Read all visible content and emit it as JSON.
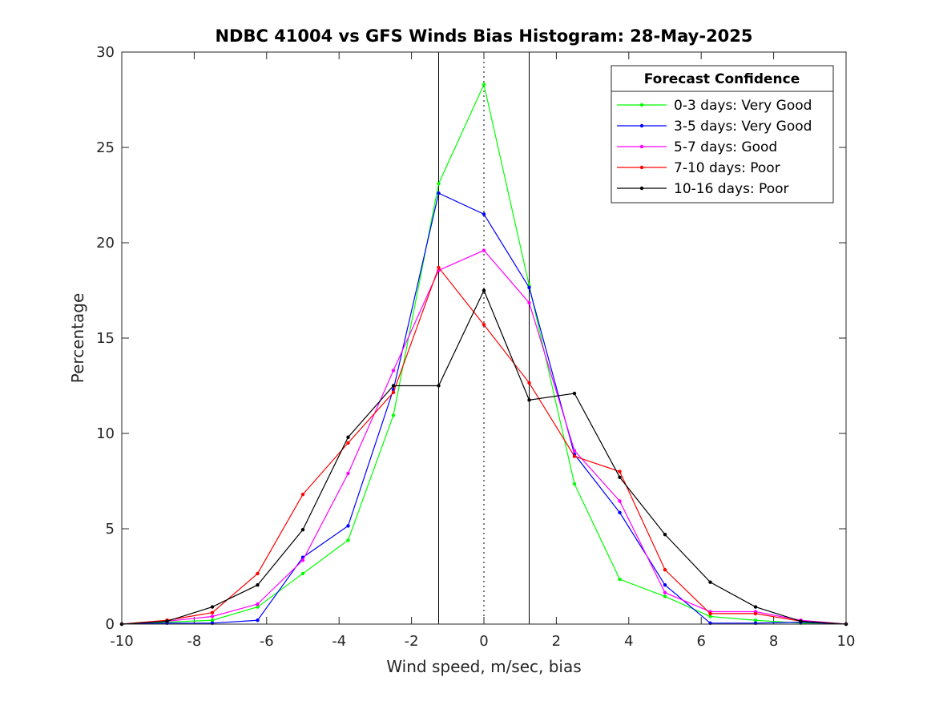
{
  "chart_data": {
    "type": "line",
    "title": "NDBC 41004 vs GFS Winds Bias Histogram: 28-May-2025",
    "xlabel": "Wind speed, m/sec, bias",
    "ylabel": "Percentage",
    "xlim": [
      -10,
      10
    ],
    "ylim": [
      0,
      30
    ],
    "xticks": [
      -10,
      -8,
      -6,
      -4,
      -2,
      0,
      2,
      4,
      6,
      8,
      10
    ],
    "yticks": [
      0,
      5,
      10,
      15,
      20,
      25,
      30
    ],
    "grid": false,
    "legend": {
      "title": "Forecast Confidence",
      "position": "top-right"
    },
    "reference_lines": {
      "solid_x": [
        -1.25,
        1.25
      ],
      "dotted_x": [
        0
      ]
    },
    "x": [
      -10,
      -8.75,
      -7.5,
      -6.25,
      -5,
      -3.75,
      -2.5,
      -1.25,
      0,
      1.25,
      2.5,
      3.75,
      5,
      6.25,
      7.5,
      8.75,
      10
    ],
    "series": [
      {
        "name": "0-3 days: Very Good",
        "color": "#00ff00",
        "values": [
          0,
          0.1,
          0.2,
          0.9,
          2.65,
          4.4,
          10.95,
          23.1,
          28.3,
          17.75,
          7.35,
          2.35,
          1.45,
          0.4,
          0.2,
          0.05,
          0
        ]
      },
      {
        "name": "3-5 days: Very Good",
        "color": "#0000ff",
        "values": [
          0,
          0.05,
          0.05,
          0.2,
          3.5,
          5.15,
          12.3,
          22.6,
          21.5,
          17.65,
          8.9,
          5.85,
          2.05,
          0.05,
          0.05,
          0.1,
          0
        ]
      },
      {
        "name": "5-7 days: Good",
        "color": "#ff00ff",
        "values": [
          0,
          0.15,
          0.4,
          1.05,
          3.35,
          7.9,
          13.3,
          18.55,
          19.6,
          16.85,
          9.1,
          6.45,
          1.65,
          0.65,
          0.65,
          0.2,
          0
        ]
      },
      {
        "name": "7-10 days: Poor",
        "color": "#ff0000",
        "values": [
          0,
          0.2,
          0.6,
          2.65,
          6.8,
          9.5,
          12.15,
          18.7,
          15.7,
          12.65,
          8.8,
          8.0,
          2.85,
          0.55,
          0.55,
          0.15,
          0
        ]
      },
      {
        "name": "10-16 days: Poor",
        "color": "#000000",
        "values": [
          0,
          0.15,
          0.9,
          2.05,
          4.95,
          9.8,
          12.5,
          12.5,
          17.5,
          11.75,
          12.1,
          7.7,
          4.7,
          2.2,
          0.9,
          0.15,
          0
        ]
      }
    ]
  }
}
